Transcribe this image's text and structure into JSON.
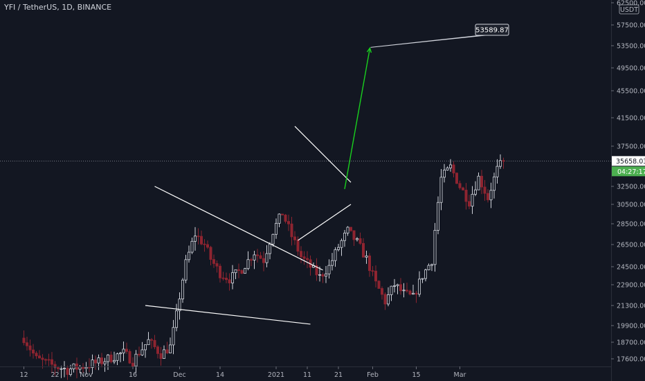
{
  "header": {
    "title": "YFI / TetherUS, 1D, BINANCE"
  },
  "chart_data": {
    "type": "candlestick",
    "symbol": "YFI / TetherUS",
    "interval": "1D",
    "exchange": "BINANCE",
    "currency_label": "USDT",
    "price_axis_ticks": [
      62500,
      57500,
      53500,
      49500,
      45500,
      41500,
      37500,
      32500,
      30500,
      28500,
      26500,
      24500,
      22900,
      21300,
      19900,
      18700,
      17600
    ],
    "time_axis_ticks": [
      "12",
      "22",
      "Nov",
      "16",
      "Dec",
      "14",
      "2021",
      "11",
      "21",
      "Feb",
      "15",
      "Mar"
    ],
    "current_price": "35658.03",
    "countdown": "04:27:17",
    "target_callout": "53589.87",
    "ylim": [
      17000,
      63000
    ],
    "colors": {
      "up": "#d1d4dc",
      "down": "#8e2430",
      "background": "#131722",
      "arrow": "#19d11e",
      "price_label": "#4caf50"
    }
  }
}
